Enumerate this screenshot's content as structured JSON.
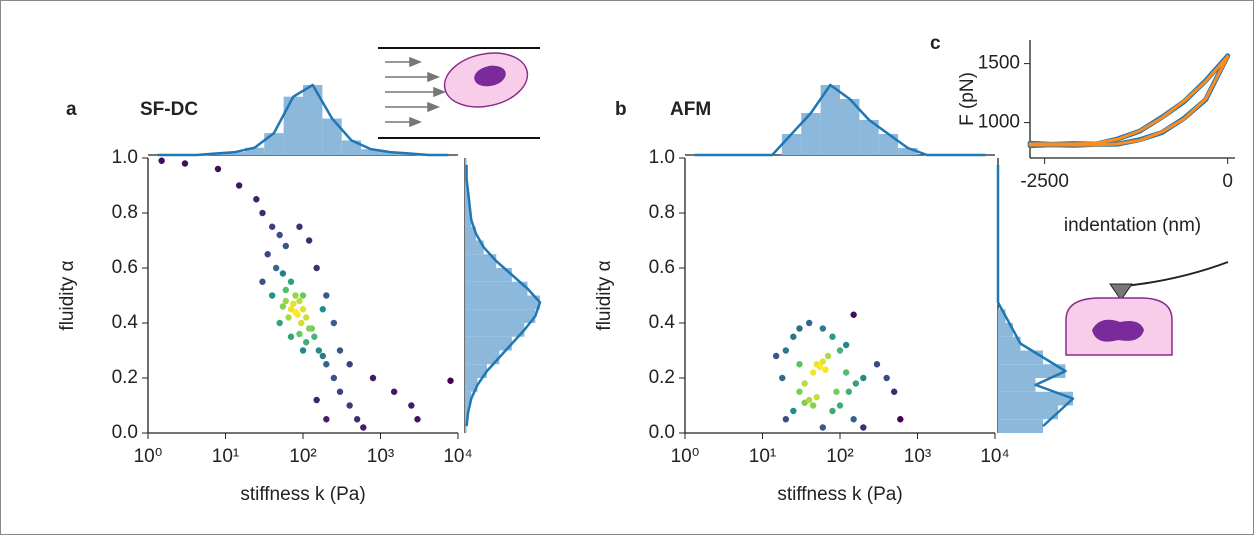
{
  "chart_data": [
    {
      "type": "scatter",
      "panel": "a",
      "title": "SF-DC",
      "x_label": "stiffness k (Pa)",
      "y_label": "fluidity α",
      "x_log": true,
      "colormap": "viridis",
      "hist_color": "#8cb8dc",
      "line_color": "#1f77b4",
      "xlim": [
        1,
        10000
      ],
      "ylim": [
        0,
        1
      ],
      "xticks": [
        {
          "value": 1,
          "label": "10⁰"
        },
        {
          "value": 10,
          "label": "10¹"
        },
        {
          "value": 100,
          "label": "10²"
        },
        {
          "value": 1000,
          "label": "10³"
        },
        {
          "value": 10000,
          "label": "10⁴"
        }
      ],
      "yticks": [
        {
          "value": 0,
          "label": "0.0"
        },
        {
          "value": 0.2,
          "label": "0.2"
        },
        {
          "value": 0.4,
          "label": "0.4"
        },
        {
          "value": 0.6,
          "label": "0.6"
        },
        {
          "value": 0.8,
          "label": "0.8"
        },
        {
          "value": 1,
          "label": "1.0"
        }
      ],
      "x": [
        1.5,
        3,
        8,
        15,
        25,
        30,
        40,
        50,
        60,
        35,
        45,
        55,
        70,
        80,
        90,
        100,
        110,
        60,
        70,
        80,
        75,
        85,
        95,
        120,
        140,
        160,
        180,
        200,
        250,
        300,
        400,
        500,
        600,
        300,
        400,
        800,
        1500,
        2500,
        3000,
        8000,
        200,
        150,
        120,
        90,
        50,
        40,
        30,
        200,
        150,
        100,
        70,
        250,
        180,
        60,
        65,
        55,
        90,
        110,
        130,
        100
      ],
      "values": [
        0.99,
        0.98,
        0.96,
        0.9,
        0.85,
        0.8,
        0.75,
        0.72,
        0.68,
        0.65,
        0.6,
        0.58,
        0.55,
        0.5,
        0.48,
        0.45,
        0.42,
        0.48,
        0.45,
        0.44,
        0.47,
        0.43,
        0.4,
        0.38,
        0.35,
        0.3,
        0.28,
        0.25,
        0.2,
        0.15,
        0.1,
        0.05,
        0.02,
        0.3,
        0.25,
        0.2,
        0.15,
        0.1,
        0.05,
        0.19,
        0.5,
        0.6,
        0.7,
        0.75,
        0.4,
        0.5,
        0.55,
        0.05,
        0.12,
        0.3,
        0.35,
        0.4,
        0.45,
        0.52,
        0.42,
        0.46,
        0.36,
        0.33,
        0.38,
        0.5
      ],
      "x_hist": {
        "bins": [
          1,
          1.78,
          3.16,
          5.62,
          10,
          17.8,
          31.6,
          56.2,
          100,
          178,
          316,
          562,
          1000,
          1780,
          3160,
          5620,
          10000
        ],
        "counts": [
          0,
          0,
          0,
          1,
          2,
          5,
          15,
          40,
          48,
          25,
          10,
          4,
          2,
          1,
          0,
          0
        ]
      },
      "y_hist": {
        "bins": [
          0,
          0.05,
          0.1,
          0.15,
          0.2,
          0.25,
          0.3,
          0.35,
          0.4,
          0.45,
          0.5,
          0.55,
          0.6,
          0.65,
          0.7,
          0.75,
          0.8,
          0.85,
          0.9,
          0.95,
          1
        ],
        "counts": [
          1,
          2,
          4,
          8,
          14,
          22,
          30,
          38,
          45,
          48,
          40,
          30,
          20,
          12,
          7,
          4,
          3,
          2,
          1,
          1
        ]
      }
    },
    {
      "type": "scatter",
      "panel": "b",
      "title": "AFM",
      "x_label": "stiffness k (Pa)",
      "y_label": "fluidity α",
      "x_log": true,
      "colormap": "viridis",
      "hist_color": "#8cb8dc",
      "line_color": "#1f77b4",
      "xlim": [
        1,
        10000
      ],
      "ylim": [
        0,
        1
      ],
      "xticks": [
        {
          "value": 1,
          "label": "10⁰"
        },
        {
          "value": 10,
          "label": "10¹"
        },
        {
          "value": 100,
          "label": "10²"
        },
        {
          "value": 1000,
          "label": "10³"
        },
        {
          "value": 10000,
          "label": "10⁴"
        }
      ],
      "yticks": [
        {
          "value": 0,
          "label": "0.0"
        },
        {
          "value": 0.2,
          "label": "0.2"
        },
        {
          "value": 0.4,
          "label": "0.4"
        },
        {
          "value": 0.6,
          "label": "0.6"
        },
        {
          "value": 0.8,
          "label": "0.8"
        },
        {
          "value": 1,
          "label": "1.0"
        }
      ],
      "x": [
        15,
        20,
        25,
        30,
        40,
        60,
        80,
        100,
        120,
        150,
        50,
        55,
        60,
        45,
        65,
        70,
        35,
        40,
        45,
        50,
        35,
        30,
        25,
        20,
        100,
        130,
        160,
        200,
        150,
        200,
        300,
        400,
        500,
        600,
        120,
        90,
        80,
        60,
        30,
        18
      ],
      "values": [
        0.28,
        0.3,
        0.35,
        0.38,
        0.4,
        0.38,
        0.35,
        0.3,
        0.32,
        0.43,
        0.25,
        0.24,
        0.26,
        0.22,
        0.23,
        0.28,
        0.18,
        0.12,
        0.1,
        0.13,
        0.11,
        0.15,
        0.08,
        0.05,
        0.1,
        0.15,
        0.18,
        0.2,
        0.05,
        0.02,
        0.25,
        0.2,
        0.15,
        0.05,
        0.22,
        0.15,
        0.08,
        0.02,
        0.25,
        0.2
      ],
      "x_hist": {
        "bins": [
          1,
          1.78,
          3.16,
          5.62,
          10,
          17.8,
          31.6,
          56.2,
          100,
          178,
          316,
          562,
          1000,
          1780,
          3160,
          5620,
          10000
        ],
        "counts": [
          0,
          0,
          0,
          0,
          0,
          3,
          6,
          10,
          8,
          5,
          3,
          1,
          0,
          0,
          0,
          0
        ]
      },
      "y_hist": {
        "bins": [
          0,
          0.05,
          0.1,
          0.15,
          0.2,
          0.25,
          0.3,
          0.35,
          0.4,
          0.45,
          0.5,
          0.55,
          0.6,
          0.65,
          0.7,
          0.75,
          0.8,
          0.85,
          0.9,
          0.95,
          1
        ],
        "counts": [
          6,
          8,
          10,
          5,
          9,
          6,
          3,
          2,
          1,
          0,
          0,
          0,
          0,
          0,
          0,
          0,
          0,
          0,
          0,
          0
        ]
      }
    },
    {
      "type": "line",
      "panel": "c",
      "x_label": "indentation (nm)",
      "y_label": "F (pN)",
      "xlim": [
        -2700,
        100
      ],
      "ylim": [
        700,
        1700
      ],
      "xticks": [
        -2500,
        0
      ],
      "yticks": [
        1000,
        1500
      ],
      "x": [
        -2700,
        -2400,
        -2100,
        -1800,
        -1500,
        -1200,
        -900,
        -600,
        -300,
        0
      ],
      "series": [
        {
          "color": "#1f77b4",
          "width": 5,
          "values": [
            825,
            815,
            822,
            818,
            862,
            928,
            1045,
            1175,
            1355,
            1565
          ]
        },
        {
          "color": "#1f77b4",
          "width": 5,
          "values": [
            805,
            812,
            808,
            815,
            818,
            855,
            915,
            1035,
            1195,
            1565
          ]
        },
        {
          "color": "#ff8c1a",
          "width": 3,
          "values": [
            820,
            820,
            820,
            825,
            860,
            930,
            1040,
            1180,
            1350,
            1560
          ]
        },
        {
          "color": "#ff8c1a",
          "width": 3,
          "values": [
            810,
            810,
            810,
            810,
            820,
            850,
            920,
            1030,
            1200,
            1560
          ]
        }
      ]
    }
  ]
}
